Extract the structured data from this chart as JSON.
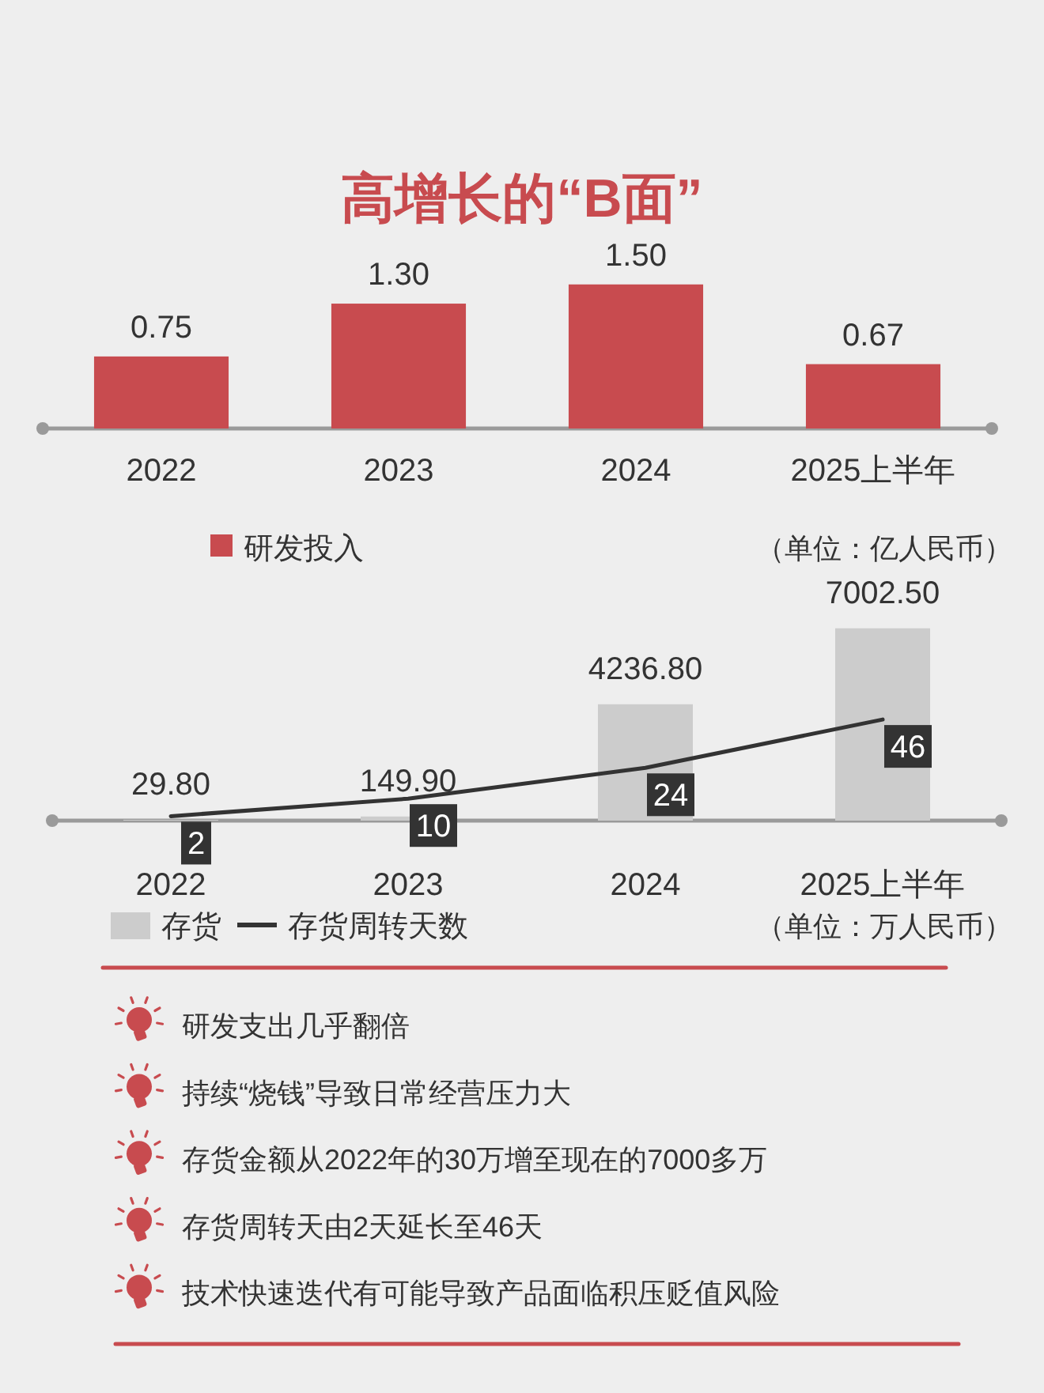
{
  "chart_data": [
    {
      "type": "bar",
      "title": "高增长的“B面”",
      "categories": [
        "2022",
        "2023",
        "2024",
        "2025上半年"
      ],
      "series": [
        {
          "name": "研发投入",
          "color": "#c84b4f",
          "values": [
            0.75,
            1.3,
            1.5,
            0.67
          ],
          "value_labels": [
            "0.75",
            "1.30",
            "1.50",
            "0.67"
          ]
        }
      ],
      "tick_labels": "x",
      "legend": "bottom left",
      "annotations": [
        "（单位：亿人民币）"
      ]
    },
    {
      "type": "bar",
      "categories": [
        "2022",
        "2023",
        "2024",
        "2025上半年"
      ],
      "series": [
        {
          "name": "存货",
          "color": "#cccccc",
          "values": [
            29.8,
            149.9,
            4236.8,
            7002.5
          ],
          "value_labels": [
            "29.80",
            "149.90",
            "4236.80",
            "7002.50"
          ]
        },
        {
          "name": "存货周转天数",
          "type": "line",
          "axis": "y2",
          "color": "#333333",
          "values": [
            2,
            10,
            24,
            46
          ],
          "value_labels": [
            "2",
            "10",
            "24",
            "46"
          ]
        }
      ],
      "tick_labels": "x",
      "legend": "bottom left",
      "annotations": [
        "（单位：万人民币）"
      ]
    },
    {
      "type": "other",
      "annotations": [
        "研发支出几乎翻倍",
        "持续“烧钱”导致日常经营压力大",
        "存货金额从2022年的30万增至现在的7000多万",
        "存货周转天由2天延长至46天",
        "技术快速迭代有可能导致产品面临积压贬值风险"
      ]
    }
  ]
}
